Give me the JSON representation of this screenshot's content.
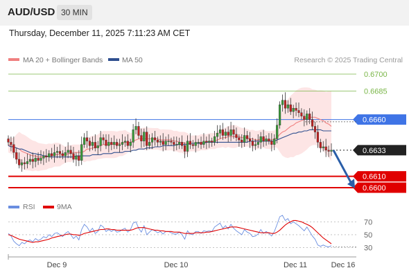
{
  "header": {
    "symbol": "AUD/USD",
    "timeframe": "30 MIN"
  },
  "datetime": "Thursday, December 11, 2025 7:11:23 AM CET",
  "legend": {
    "items": [
      {
        "label": "MA 20 + Bollinger Bands",
        "color": "#f08080"
      },
      {
        "label": "MA 50",
        "color": "#2f4f8f"
      }
    ],
    "rsi_items": [
      {
        "label": "RSI",
        "color": "#6a8ee0"
      },
      {
        "label": "9MA",
        "color": "#e00000"
      }
    ]
  },
  "credit": "Research © 2025 Trading Central",
  "chart_data": [
    {
      "type": "candlestick",
      "ylim": [
        0.6596,
        0.6706
      ],
      "x_labels": [
        "Dec 9",
        "Dec 10",
        "Dec 11",
        "Dec 16"
      ],
      "levels": [
        {
          "value": 0.67,
          "label": "0.6700",
          "color": "#7ab648",
          "style": "text"
        },
        {
          "value": 0.6685,
          "label": "0.6685",
          "color": "#7ab648",
          "style": "text"
        },
        {
          "value": 0.666,
          "label": "0.6660",
          "color": "#3f74e6",
          "style": "box"
        },
        {
          "value": 0.6633,
          "label": "0.6633",
          "color": "#222222",
          "style": "box"
        },
        {
          "value": 0.661,
          "label": "0.6610",
          "color": "#e00000",
          "style": "box"
        },
        {
          "value": 0.66,
          "label": "0.6600",
          "color": "#e00000",
          "style": "box"
        }
      ],
      "current_price": 0.6633,
      "ohlc_close": [
        0.664,
        0.6638,
        0.6631,
        0.6625,
        0.662,
        0.6622,
        0.6621,
        0.6623,
        0.6625,
        0.6623,
        0.6626,
        0.6624,
        0.6626,
        0.6628,
        0.6627,
        0.663,
        0.6628,
        0.6631,
        0.6632,
        0.663,
        0.6628,
        0.6631,
        0.6633,
        0.663,
        0.6625,
        0.6628,
        0.6624,
        0.6638,
        0.6644,
        0.6641,
        0.6637,
        0.664,
        0.6635,
        0.6637,
        0.6644,
        0.6642,
        0.6637,
        0.664,
        0.6638,
        0.664,
        0.6637,
        0.6638,
        0.664,
        0.6641,
        0.6637,
        0.664,
        0.6651,
        0.6654,
        0.6646,
        0.6641,
        0.6649,
        0.6637,
        0.664,
        0.6644,
        0.6642,
        0.664,
        0.6641,
        0.6638,
        0.6641,
        0.6641,
        0.664,
        0.6638,
        0.6638,
        0.664,
        0.6637,
        0.6632,
        0.6641,
        0.6638,
        0.6637,
        0.664,
        0.664,
        0.6638,
        0.6641,
        0.664,
        0.6641,
        0.664,
        0.6645,
        0.6648,
        0.6651,
        0.6646,
        0.6649,
        0.6646,
        0.6651,
        0.6647,
        0.6644,
        0.6642,
        0.664,
        0.6646,
        0.6643,
        0.6641,
        0.6637,
        0.6638,
        0.664,
        0.6645,
        0.6641,
        0.6643,
        0.6641,
        0.6638,
        0.6643,
        0.6655,
        0.6673,
        0.6677,
        0.667,
        0.6673,
        0.6667,
        0.667,
        0.6668,
        0.6666,
        0.6663,
        0.666,
        0.6665,
        0.666,
        0.6654,
        0.6649,
        0.664,
        0.6635,
        0.6636,
        0.6633,
        0.6632,
        0.6633
      ],
      "ma20": [
        0.6638,
        0.6637,
        0.6636,
        0.6635,
        0.6634,
        0.6632,
        0.6631,
        0.663,
        0.6629,
        0.6628,
        0.6628,
        0.6627,
        0.6627,
        0.6627,
        0.6627,
        0.6628,
        0.6628,
        0.6629,
        0.6629,
        0.6629,
        0.6629,
        0.6629,
        0.663,
        0.663,
        0.6631,
        0.6631,
        0.6631,
        0.6631,
        0.6632,
        0.6634,
        0.6634,
        0.6635,
        0.6635,
        0.6636,
        0.6637,
        0.6638,
        0.6638,
        0.6638,
        0.6638,
        0.6638,
        0.6638,
        0.6639,
        0.6639,
        0.664,
        0.664,
        0.664,
        0.6641,
        0.6642,
        0.6643,
        0.6643,
        0.6643,
        0.6643,
        0.6643,
        0.6643,
        0.6643,
        0.6643,
        0.6642,
        0.6642,
        0.6642,
        0.6642,
        0.6642,
        0.6641,
        0.6641,
        0.664,
        0.664,
        0.6639,
        0.6639,
        0.6639,
        0.6639,
        0.6639,
        0.6639,
        0.664,
        0.664,
        0.664,
        0.6641,
        0.6641,
        0.6641,
        0.6642,
        0.6643,
        0.6644,
        0.6644,
        0.6645,
        0.6645,
        0.6645,
        0.6645,
        0.6645,
        0.6644,
        0.6644,
        0.6644,
        0.6643,
        0.6643,
        0.6642,
        0.6642,
        0.6643,
        0.6643,
        0.6642,
        0.6642,
        0.6642,
        0.6643,
        0.6644,
        0.6647,
        0.6649,
        0.665,
        0.6652,
        0.6654,
        0.6655,
        0.6657,
        0.6658,
        0.6659,
        0.666,
        0.6661,
        0.6662,
        0.6662,
        0.6662,
        0.6661,
        0.666,
        0.6659,
        0.6657,
        0.6656,
        0.6654
      ],
      "ma50": [
        0.6637,
        0.6636,
        0.6636,
        0.6635,
        0.6634,
        0.6634,
        0.6633,
        0.6632,
        0.6631,
        0.663,
        0.663,
        0.6629,
        0.6629,
        0.6628,
        0.6628,
        0.6627,
        0.6627,
        0.6627,
        0.6627,
        0.6627,
        0.6627,
        0.6627,
        0.6627,
        0.6627,
        0.6627,
        0.6628,
        0.6628,
        0.6628,
        0.6628,
        0.6628,
        0.6628,
        0.6629,
        0.6629,
        0.6629,
        0.6629,
        0.663,
        0.663,
        0.663,
        0.663,
        0.6631,
        0.6631,
        0.6631,
        0.6631,
        0.6632,
        0.6632,
        0.6632,
        0.6633,
        0.6633,
        0.6634,
        0.6634,
        0.6634,
        0.6635,
        0.6635,
        0.6635,
        0.6636,
        0.6636,
        0.6636,
        0.6637,
        0.6637,
        0.6637,
        0.6637,
        0.6637,
        0.6638,
        0.6638,
        0.6638,
        0.6638,
        0.6638,
        0.6639,
        0.6639,
        0.6639,
        0.6639,
        0.6639,
        0.6639,
        0.664,
        0.664,
        0.664,
        0.664,
        0.664,
        0.664,
        0.664,
        0.664,
        0.664,
        0.664,
        0.664,
        0.664,
        0.664,
        0.664,
        0.664,
        0.664,
        0.6641,
        0.6641,
        0.6641,
        0.6641,
        0.6641,
        0.6641,
        0.6641,
        0.6641,
        0.6641,
        0.6641,
        0.6642,
        0.6643,
        0.6644,
        0.6645,
        0.6646,
        0.6647,
        0.6648,
        0.6648,
        0.6649,
        0.6649,
        0.665,
        0.665,
        0.6651,
        0.6651,
        0.6651,
        0.6651,
        0.6651,
        0.665,
        0.665,
        0.665,
        0.665
      ],
      "projection": {
        "from": 0.6633,
        "to": 0.66
      }
    },
    {
      "type": "line",
      "name": "RSI",
      "ylim": [
        22,
        80
      ],
      "y_ticks": [
        70,
        50,
        30
      ],
      "series": [
        {
          "name": "RSI",
          "color": "#6a8ee0",
          "values": [
            52,
            48,
            40,
            36,
            33,
            38,
            36,
            40,
            42,
            39,
            44,
            41,
            43,
            47,
            45,
            50,
            47,
            52,
            53,
            50,
            47,
            52,
            55,
            50,
            44,
            48,
            42,
            58,
            66,
            62,
            55,
            60,
            52,
            55,
            65,
            62,
            55,
            58,
            55,
            58,
            54,
            55,
            58,
            60,
            54,
            58,
            68,
            70,
            60,
            54,
            64,
            50,
            54,
            58,
            56,
            53,
            55,
            51,
            55,
            55,
            53,
            51,
            51,
            54,
            50,
            43,
            56,
            51,
            50,
            55,
            55,
            52,
            56,
            55,
            56,
            55,
            62,
            65,
            68,
            60,
            64,
            59,
            66,
            60,
            56,
            53,
            50,
            58,
            54,
            52,
            47,
            48,
            51,
            58,
            52,
            55,
            52,
            48,
            55,
            66,
            78,
            80,
            72,
            75,
            67,
            70,
            67,
            64,
            60,
            56,
            62,
            55,
            48,
            43,
            34,
            32,
            34,
            32,
            31,
            33
          ]
        },
        {
          "name": "9MA",
          "color": "#e00000",
          "values": [
            50,
            49,
            47,
            45,
            43,
            42,
            41,
            40,
            39,
            38,
            39,
            39,
            40,
            41,
            42,
            43,
            45,
            46,
            47,
            48,
            49,
            50,
            51,
            51,
            50,
            50,
            49,
            50,
            52,
            53,
            54,
            55,
            56,
            57,
            58,
            58,
            59,
            59,
            58,
            58,
            57,
            57,
            57,
            57,
            57,
            57,
            58,
            60,
            61,
            61,
            61,
            60,
            59,
            58,
            57,
            57,
            56,
            56,
            55,
            55,
            55,
            54,
            54,
            54,
            53,
            52,
            52,
            52,
            52,
            53,
            53,
            53,
            53,
            54,
            54,
            55,
            56,
            57,
            58,
            59,
            60,
            61,
            62,
            62,
            62,
            61,
            60,
            59,
            58,
            57,
            56,
            55,
            54,
            53,
            53,
            53,
            53,
            52,
            52,
            54,
            57,
            61,
            65,
            68,
            70,
            72,
            72,
            71,
            70,
            68,
            66,
            64,
            61,
            57,
            53,
            49,
            45,
            42,
            39,
            36
          ]
        }
      ]
    }
  ]
}
